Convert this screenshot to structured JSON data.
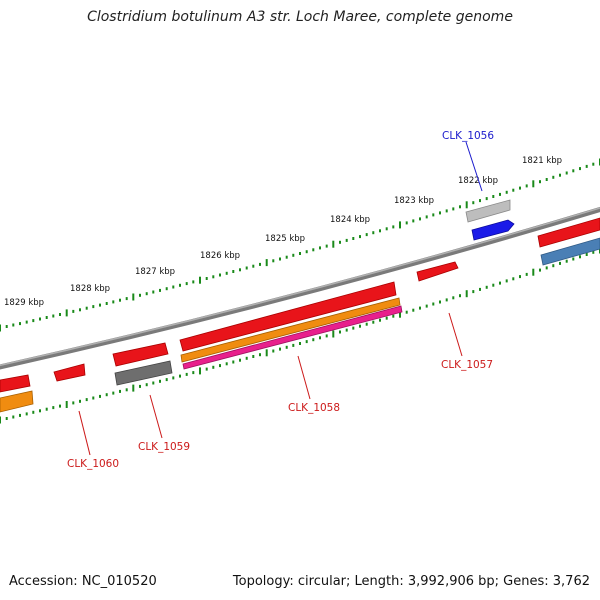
{
  "title": "Clostridium botulinum A3 str. Loch Maree, complete genome",
  "footer": {
    "accession": "Accession: NC_010520",
    "summary": "Topology: circular; Length: 3,992,906 bp; Genes: 3,762"
  },
  "scale_labels": [
    "1821 kbp",
    "1822 kbp",
    "1823 kbp",
    "1824 kbp",
    "1825 kbp",
    "1826 kbp",
    "1827 kbp",
    "1828 kbp",
    "1829 kbp"
  ],
  "gene_labels": [
    {
      "name": "CLK_1056",
      "color": "#1a1acc"
    },
    {
      "name": "CLK_1057",
      "color": "#cc1a1a"
    },
    {
      "name": "CLK_1058",
      "color": "#cc1a1a"
    },
    {
      "name": "CLK_1059",
      "color": "#cc1a1a"
    },
    {
      "name": "CLK_1060",
      "color": "#cc1a1a"
    }
  ],
  "colors": {
    "backbone": "#808080",
    "tick": "#1a8a1a",
    "cds": "#e8141a",
    "rna": "#f08c10",
    "pink": "#e8208c",
    "blue": "#1a1ae8",
    "steel": "#4a7fb5",
    "gray": "#6e6e6e",
    "light_gray": "#b8b8b8"
  }
}
